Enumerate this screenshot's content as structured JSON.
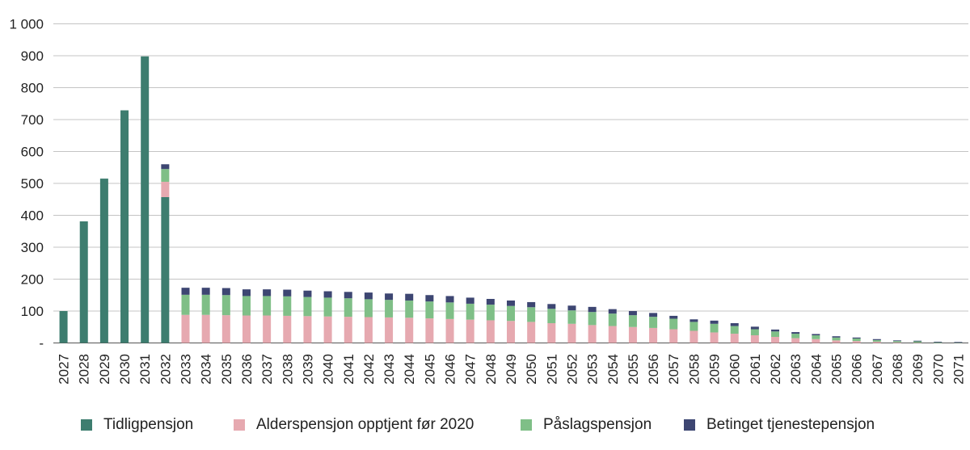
{
  "chart_data": {
    "type": "bar",
    "stacked": true,
    "title": "",
    "xlabel": "",
    "ylabel": "",
    "ylim": [
      0,
      1000
    ],
    "yticks": [
      0,
      100,
      200,
      300,
      400,
      500,
      600,
      700,
      800,
      900,
      1000
    ],
    "ytick_labels": [
      "-",
      "100",
      "200",
      "300",
      "400",
      "500",
      "600",
      "700",
      "800",
      "900",
      "1 000"
    ],
    "grid": true,
    "legend_position": "bottom",
    "categories": [
      "2027",
      "2028",
      "2029",
      "2030",
      "2031",
      "2032",
      "2033",
      "2034",
      "2035",
      "2036",
      "2037",
      "2038",
      "2039",
      "2040",
      "2041",
      "2042",
      "2043",
      "2044",
      "2045",
      "2046",
      "2047",
      "2048",
      "2049",
      "2050",
      "2051",
      "2052",
      "2053",
      "2054",
      "2055",
      "2056",
      "2057",
      "2058",
      "2059",
      "2060",
      "2061",
      "2062",
      "2063",
      "2064",
      "2065",
      "2066",
      "2067",
      "2068",
      "2069",
      "2070",
      "2071"
    ],
    "series": [
      {
        "name": "Tidligpensjon",
        "color": "#3d7d6f",
        "values": [
          100,
          381,
          515,
          729,
          898,
          457,
          0,
          0,
          0,
          0,
          0,
          0,
          0,
          0,
          0,
          0,
          0,
          0,
          0,
          0,
          0,
          0,
          0,
          0,
          0,
          0,
          0,
          0,
          0,
          0,
          0,
          0,
          0,
          0,
          0,
          0,
          0,
          0,
          0,
          0,
          0,
          0,
          0,
          0,
          0
        ]
      },
      {
        "name": "Alderspensjon opptjent før 2020",
        "color": "#e6a9b0",
        "values": [
          0,
          0,
          0,
          0,
          0,
          48,
          88,
          88,
          87,
          86,
          86,
          85,
          84,
          83,
          82,
          81,
          80,
          79,
          77,
          75,
          73,
          71,
          69,
          66,
          62,
          60,
          56,
          53,
          50,
          47,
          43,
          38,
          33,
          29,
          24,
          19,
          15,
          12,
          8,
          6,
          4,
          2,
          1,
          0,
          0
        ]
      },
      {
        "name": "Påslagspensjon",
        "color": "#7fbf87",
        "values": [
          0,
          0,
          0,
          0,
          0,
          40,
          63,
          63,
          63,
          61,
          61,
          61,
          60,
          59,
          58,
          56,
          55,
          54,
          53,
          52,
          50,
          49,
          47,
          46,
          45,
          42,
          41,
          39,
          37,
          35,
          33,
          28,
          27,
          24,
          19,
          17,
          14,
          12,
          9,
          8,
          5,
          4,
          4,
          2,
          1
        ]
      },
      {
        "name": "Betinget tjenestepensjon",
        "color": "#3d4672",
        "values": [
          0,
          0,
          0,
          0,
          0,
          15,
          22,
          22,
          22,
          21,
          21,
          21,
          20,
          20,
          20,
          21,
          20,
          21,
          20,
          20,
          19,
          18,
          17,
          16,
          15,
          15,
          16,
          14,
          13,
          12,
          9,
          8,
          10,
          9,
          8,
          6,
          5,
          4,
          4,
          3,
          3,
          2,
          2,
          2,
          2
        ]
      }
    ]
  }
}
